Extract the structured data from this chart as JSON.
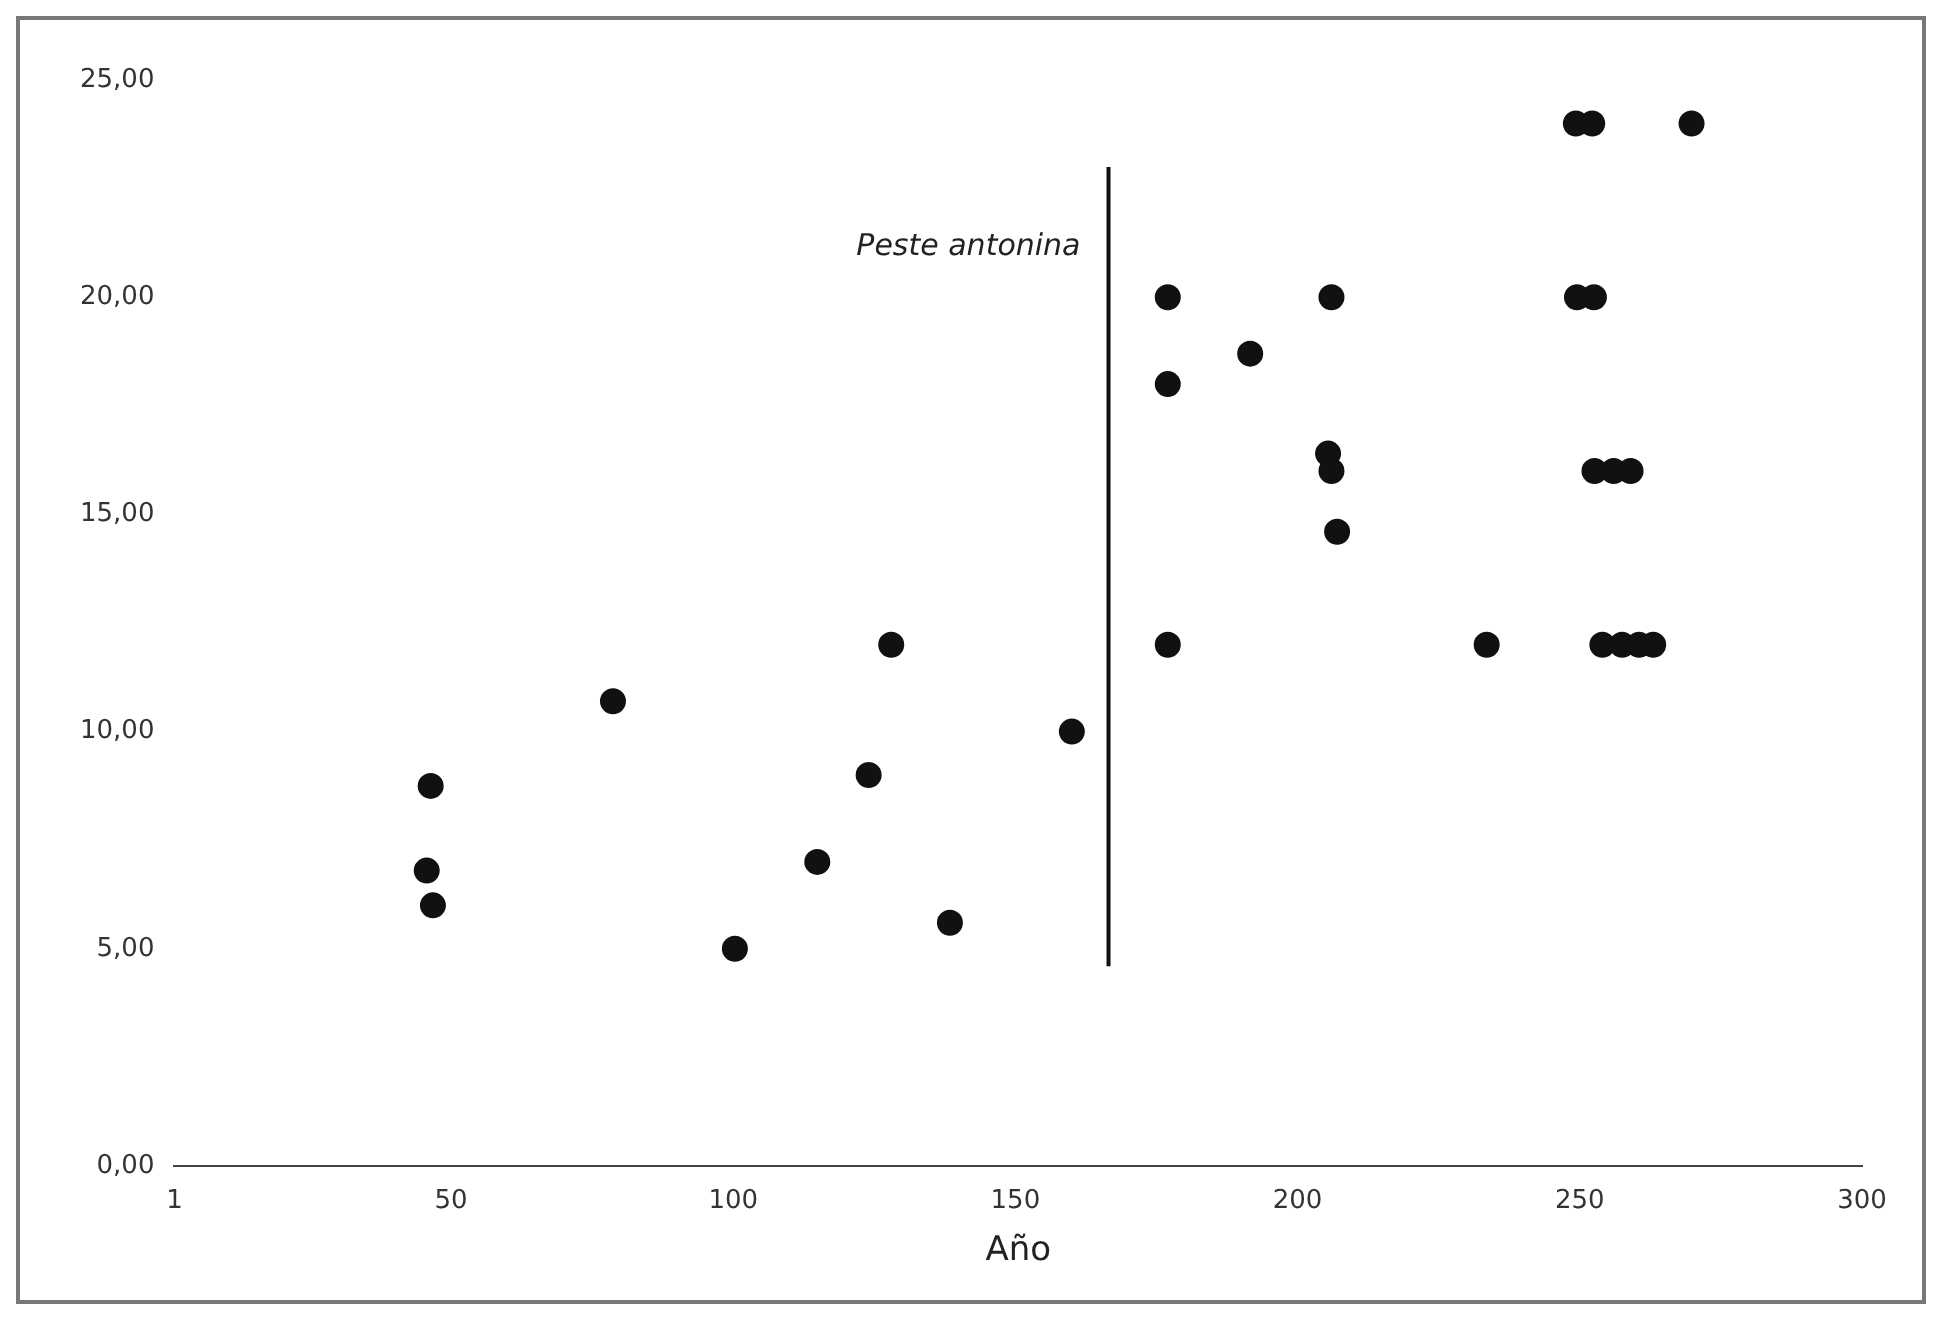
{
  "chart_data": {
    "type": "scatter",
    "xlabel": "Año",
    "xlim": [
      1,
      300
    ],
    "xticks": [
      1,
      50,
      100,
      150,
      200,
      250,
      300
    ],
    "ylim": [
      0,
      25
    ],
    "yticks": [
      {
        "value": 0,
        "label": "0,00"
      },
      {
        "value": 5,
        "label": "5,00"
      },
      {
        "value": 10,
        "label": "10,00"
      },
      {
        "value": 15,
        "label": "15,00"
      },
      {
        "value": 20,
        "label": "20,00"
      },
      {
        "value": 25,
        "label": "25,00"
      }
    ],
    "grid": false,
    "legend": false,
    "marker": "circle",
    "series": [
      {
        "color": "#111111",
        "x": [
          45.7,
          46.4,
          46.8,
          78.7,
          100.3,
          114.9,
          124,
          128,
          138.4,
          160,
          177,
          177,
          177,
          191.6,
          206,
          205.4,
          206,
          207,
          233.5,
          249.3,
          252.2,
          269.8,
          249.5,
          252.5,
          252.6,
          256,
          259,
          254,
          257.5,
          260.5,
          263
        ],
        "values": [
          6.8,
          8.75,
          6.0,
          10.7,
          5.0,
          7.0,
          9.0,
          12.0,
          5.6,
          10.0,
          20.0,
          18.0,
          12.0,
          18.7,
          20.0,
          16.4,
          16.0,
          14.6,
          12.0,
          24.0,
          24.0,
          24.0,
          20.0,
          20.0,
          16.0,
          16.0,
          16.0,
          12.0,
          12.0,
          12.0,
          12.0
        ]
      },
      {
        "type": "line",
        "color": "#111111",
        "marker": "none",
        "x": [
          166.5,
          166.5
        ],
        "values": [
          4.6,
          23.0
        ]
      }
    ],
    "annotations": [
      "Peste antonina"
    ]
  }
}
